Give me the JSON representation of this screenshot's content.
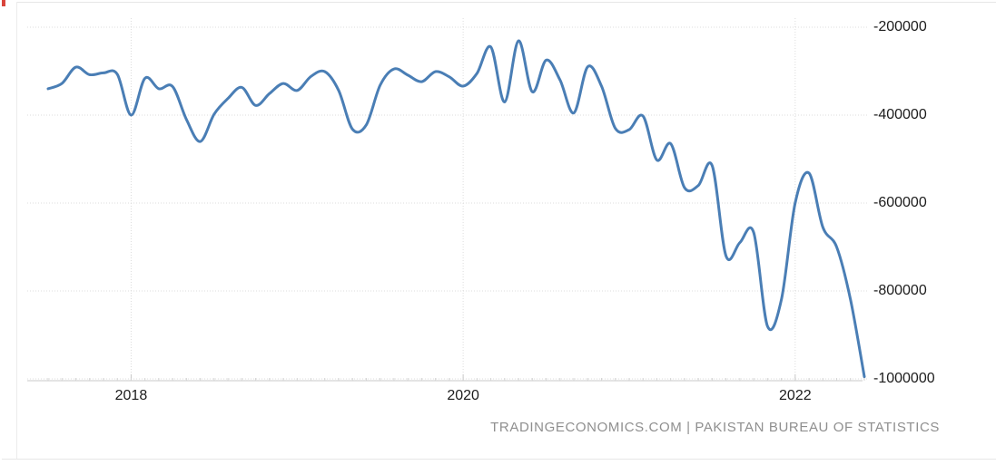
{
  "chart_data": {
    "type": "line",
    "title": "",
    "line_color": "#4a7eb5",
    "grid_color": "#dcdcdc",
    "axis_color": "#c9c9c9",
    "label_color": "#1c1c1c",
    "legend": "none",
    "grid_style": "dotted",
    "x_unit": "month",
    "x": [
      "2017-07",
      "2017-08",
      "2017-09",
      "2017-10",
      "2017-11",
      "2017-12",
      "2018-01",
      "2018-02",
      "2018-03",
      "2018-04",
      "2018-05",
      "2018-06",
      "2018-07",
      "2018-08",
      "2018-09",
      "2018-10",
      "2018-11",
      "2018-12",
      "2019-01",
      "2019-02",
      "2019-03",
      "2019-04",
      "2019-05",
      "2019-06",
      "2019-07",
      "2019-08",
      "2019-09",
      "2019-10",
      "2019-11",
      "2019-12",
      "2020-01",
      "2020-02",
      "2020-03",
      "2020-04",
      "2020-05",
      "2020-06",
      "2020-07",
      "2020-08",
      "2020-09",
      "2020-10",
      "2020-11",
      "2020-12",
      "2021-01",
      "2021-02",
      "2021-03",
      "2021-04",
      "2021-05",
      "2021-06",
      "2021-07",
      "2021-08",
      "2021-09",
      "2021-10",
      "2021-11",
      "2021-12",
      "2022-01",
      "2022-02",
      "2022-03",
      "2022-04",
      "2022-05",
      "2022-06"
    ],
    "values": [
      -340000,
      -328000,
      -291000,
      -308000,
      -304000,
      -307000,
      -400000,
      -316000,
      -340000,
      -335000,
      -410000,
      -460000,
      -398000,
      -362000,
      -337000,
      -378000,
      -351000,
      -328000,
      -344000,
      -312000,
      -301000,
      -344000,
      -432000,
      -422000,
      -332000,
      -295000,
      -309000,
      -324000,
      -301000,
      -313000,
      -334000,
      -305000,
      -245000,
      -370000,
      -231000,
      -347000,
      -275000,
      -320000,
      -395000,
      -290000,
      -334000,
      -430000,
      -433000,
      -402000,
      -502000,
      -465000,
      -565000,
      -560000,
      -515000,
      -720000,
      -690000,
      -667000,
      -880000,
      -820000,
      -600000,
      -532000,
      -655000,
      -700000,
      -820000,
      -995000
    ],
    "ylim": [
      -1020000,
      -190000
    ],
    "y_ticks": [
      {
        "value": -200000,
        "label": "-200000"
      },
      {
        "value": -400000,
        "label": "-400000"
      },
      {
        "value": -600000,
        "label": "-600000"
      },
      {
        "value": -800000,
        "label": "-800000"
      },
      {
        "value": -1000000,
        "label": "-1000000"
      }
    ],
    "x_ticks": [
      {
        "label": "2018",
        "month": "2018-01"
      },
      {
        "label": "2020",
        "month": "2020-01"
      },
      {
        "label": "2022",
        "month": "2022-01"
      }
    ]
  },
  "footer": {
    "attribution": "TRADINGECONOMICS.COM | PAKISTAN BUREAU OF STATISTICS"
  },
  "decorations": {
    "red_artifact_color": "#d9453c"
  }
}
